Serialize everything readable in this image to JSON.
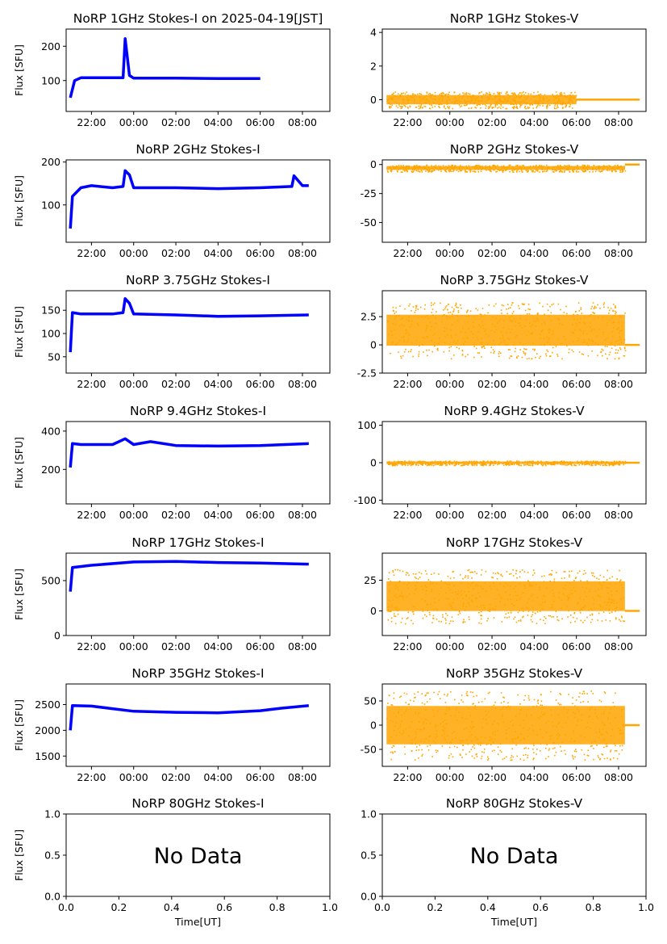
{
  "figure": {
    "xlabel": "Time[UT]",
    "time_ticks": [
      "22:00",
      "00:00",
      "02:00",
      "04:00",
      "06:00",
      "08:00"
    ],
    "empty_ticks": [
      "0.0",
      "0.2",
      "0.4",
      "0.6",
      "0.8",
      "1.0"
    ],
    "no_data_text": "No Data",
    "colors": {
      "stokes_i": "#0000ff",
      "stokes_v": "#ffa500"
    }
  },
  "chart_data": [
    {
      "type": "line",
      "title": "NoRP 1GHz Stokes-I on 2025-04-19[JST]",
      "ylabel": "Flux [SFU]",
      "x_range_hours": [
        20.8,
        33.3
      ],
      "xlim": [
        "20:48",
        "09:18"
      ],
      "ylim": [
        10,
        250
      ],
      "yticks": [
        100,
        200
      ],
      "color": "#0000ff",
      "series": [
        {
          "x": [
            21.0,
            21.2,
            21.5,
            22.5,
            23.5,
            23.6,
            23.8,
            24.0,
            26.0,
            28.0,
            30.0
          ],
          "y": [
            50,
            100,
            108,
            108,
            108,
            222,
            115,
            107,
            107,
            106,
            106
          ]
        }
      ]
    },
    {
      "type": "scatter",
      "title": "NoRP 1GHz Stokes-V",
      "ylabel": "",
      "x_range_hours": [
        20.8,
        33.3
      ],
      "ylim": [
        -0.7,
        4.2
      ],
      "yticks": [
        0,
        2,
        4
      ],
      "color": "#ffa500",
      "series": [
        {
          "x_start": 21.0,
          "x_end": 30.0,
          "center": 0,
          "spread": 0.5,
          "flat_from": 30.0,
          "flat_to": 33.0,
          "flat_value": 0
        }
      ]
    },
    {
      "type": "line",
      "title": "NoRP 2GHz Stokes-I",
      "ylabel": "Flux [SFU]",
      "x_range_hours": [
        20.8,
        33.3
      ],
      "ylim": [
        13,
        205
      ],
      "yticks": [
        100,
        200
      ],
      "color": "#0000ff",
      "series": [
        {
          "x": [
            21.0,
            21.1,
            21.5,
            22.0,
            23.0,
            23.5,
            23.6,
            23.8,
            24.0,
            26.0,
            28.0,
            30.0,
            31.5,
            31.6,
            32.0,
            32.3
          ],
          "y": [
            45,
            120,
            140,
            145,
            140,
            143,
            180,
            170,
            140,
            140,
            138,
            140,
            143,
            168,
            145,
            145
          ]
        }
      ]
    },
    {
      "type": "scatter",
      "title": "NoRP 2GHz Stokes-V",
      "ylabel": "",
      "x_range_hours": [
        20.8,
        33.3
      ],
      "ylim": [
        -67,
        4
      ],
      "yticks": [
        0,
        -25,
        -50
      ],
      "color": "#ffa500",
      "series": [
        {
          "x_start": 21.0,
          "x_end": 32.3,
          "center": -3,
          "spread": 3,
          "flat_from": 32.3,
          "flat_to": 33.0,
          "flat_value": 0
        }
      ]
    },
    {
      "type": "line",
      "title": "NoRP 3.75GHz Stokes-I",
      "ylabel": "Flux [SFU]",
      "x_range_hours": [
        20.8,
        33.3
      ],
      "ylim": [
        15,
        192
      ],
      "yticks": [
        50,
        100,
        150
      ],
      "color": "#0000ff",
      "series": [
        {
          "x": [
            21.0,
            21.1,
            21.5,
            23.0,
            23.5,
            23.6,
            23.8,
            24.0,
            26.0,
            28.0,
            30.0,
            32.3
          ],
          "y": [
            60,
            145,
            142,
            142,
            145,
            175,
            165,
            142,
            140,
            137,
            138,
            140
          ]
        }
      ]
    },
    {
      "type": "scatter",
      "title": "NoRP 3.75GHz Stokes-V",
      "ylabel": "",
      "x_range_hours": [
        20.8,
        33.3
      ],
      "ylim": [
        -2.5,
        4.8
      ],
      "yticks": [
        2.5,
        0.0,
        -2.5
      ],
      "color": "#ffa500",
      "series": [
        {
          "x_start": 21.0,
          "x_end": 32.3,
          "center": 1.3,
          "spread": 2.5,
          "flat_from": 32.3,
          "flat_to": 33.0,
          "flat_value": 0
        }
      ]
    },
    {
      "type": "line",
      "title": "NoRP 9.4GHz Stokes-I",
      "ylabel": "Flux [SFU]",
      "x_range_hours": [
        20.8,
        33.3
      ],
      "ylim": [
        20,
        450
      ],
      "yticks": [
        200,
        400
      ],
      "color": "#0000ff",
      "series": [
        {
          "x": [
            21.0,
            21.1,
            21.5,
            23.0,
            23.6,
            24.0,
            24.8,
            26.0,
            28.0,
            30.0,
            32.3
          ],
          "y": [
            210,
            335,
            330,
            330,
            360,
            330,
            345,
            325,
            322,
            325,
            335
          ]
        }
      ]
    },
    {
      "type": "scatter",
      "title": "NoRP 9.4GHz Stokes-V",
      "ylabel": "",
      "x_range_hours": [
        20.8,
        33.3
      ],
      "ylim": [
        -110,
        110
      ],
      "yticks": [
        100,
        0,
        -100
      ],
      "color": "#ffa500",
      "series": [
        {
          "x_start": 21.0,
          "x_end": 32.3,
          "center": 0,
          "spread": 6,
          "flat_from": 32.3,
          "flat_to": 33.0,
          "flat_value": 0
        }
      ]
    },
    {
      "type": "line",
      "title": "NoRP 17GHz Stokes-I",
      "ylabel": "Flux [SFU]",
      "x_range_hours": [
        20.8,
        33.3
      ],
      "ylim": [
        0,
        750
      ],
      "yticks": [
        0,
        500
      ],
      "color": "#0000ff",
      "series": [
        {
          "x": [
            21.0,
            21.1,
            22.0,
            24.0,
            26.0,
            28.0,
            30.0,
            32.3
          ],
          "y": [
            400,
            620,
            640,
            670,
            675,
            665,
            660,
            650
          ]
        }
      ]
    },
    {
      "type": "scatter",
      "title": "NoRP 17GHz Stokes-V",
      "ylabel": "",
      "x_range_hours": [
        20.8,
        33.3
      ],
      "ylim": [
        -20,
        47
      ],
      "yticks": [
        25,
        0
      ],
      "color": "#ffa500",
      "series": [
        {
          "x_start": 21.0,
          "x_end": 32.3,
          "center": 12,
          "spread": 22,
          "flat_from": 32.3,
          "flat_to": 33.0,
          "flat_value": 0
        }
      ]
    },
    {
      "type": "line",
      "title": "NoRP 35GHz Stokes-I",
      "ylabel": "Flux [SFU]",
      "x_range_hours": [
        20.8,
        33.3
      ],
      "ylim": [
        1300,
        2900
      ],
      "yticks": [
        1500,
        2000,
        2500
      ],
      "color": "#0000ff",
      "series": [
        {
          "x": [
            21.0,
            21.1,
            22.0,
            23.0,
            24.0,
            26.0,
            28.0,
            30.0,
            31.0,
            32.3
          ],
          "y": [
            2000,
            2480,
            2470,
            2420,
            2370,
            2350,
            2340,
            2380,
            2430,
            2480
          ]
        }
      ]
    },
    {
      "type": "scatter",
      "title": "NoRP 35GHz Stokes-V",
      "ylabel": "",
      "x_range_hours": [
        20.8,
        33.3
      ],
      "ylim": [
        -85,
        85
      ],
      "yticks": [
        50,
        0,
        -50
      ],
      "color": "#ffa500",
      "series": [
        {
          "x_start": 21.0,
          "x_end": 32.3,
          "center": 0,
          "spread": 72,
          "flat_from": 32.3,
          "flat_to": 33.0,
          "flat_value": 0
        }
      ]
    },
    {
      "type": "empty",
      "title": "NoRP 80GHz Stokes-I",
      "ylabel": "Flux [SFU]",
      "xlabel": "Time[UT]",
      "xlim": [
        0.0,
        1.0
      ],
      "ylim": [
        0.0,
        1.0
      ],
      "xticks": [
        0.0,
        0.2,
        0.4,
        0.6,
        0.8,
        1.0
      ],
      "yticks": [
        0.0,
        0.5,
        1.0
      ],
      "annotation": "No Data"
    },
    {
      "type": "empty",
      "title": "NoRP 80GHz Stokes-V",
      "ylabel": "",
      "xlabel": "Time[UT]",
      "xlim": [
        0.0,
        1.0
      ],
      "ylim": [
        0.0,
        1.0
      ],
      "xticks": [
        0.0,
        0.2,
        0.4,
        0.6,
        0.8,
        1.0
      ],
      "yticks": [
        0.0,
        0.5,
        1.0
      ],
      "annotation": "No Data"
    }
  ]
}
